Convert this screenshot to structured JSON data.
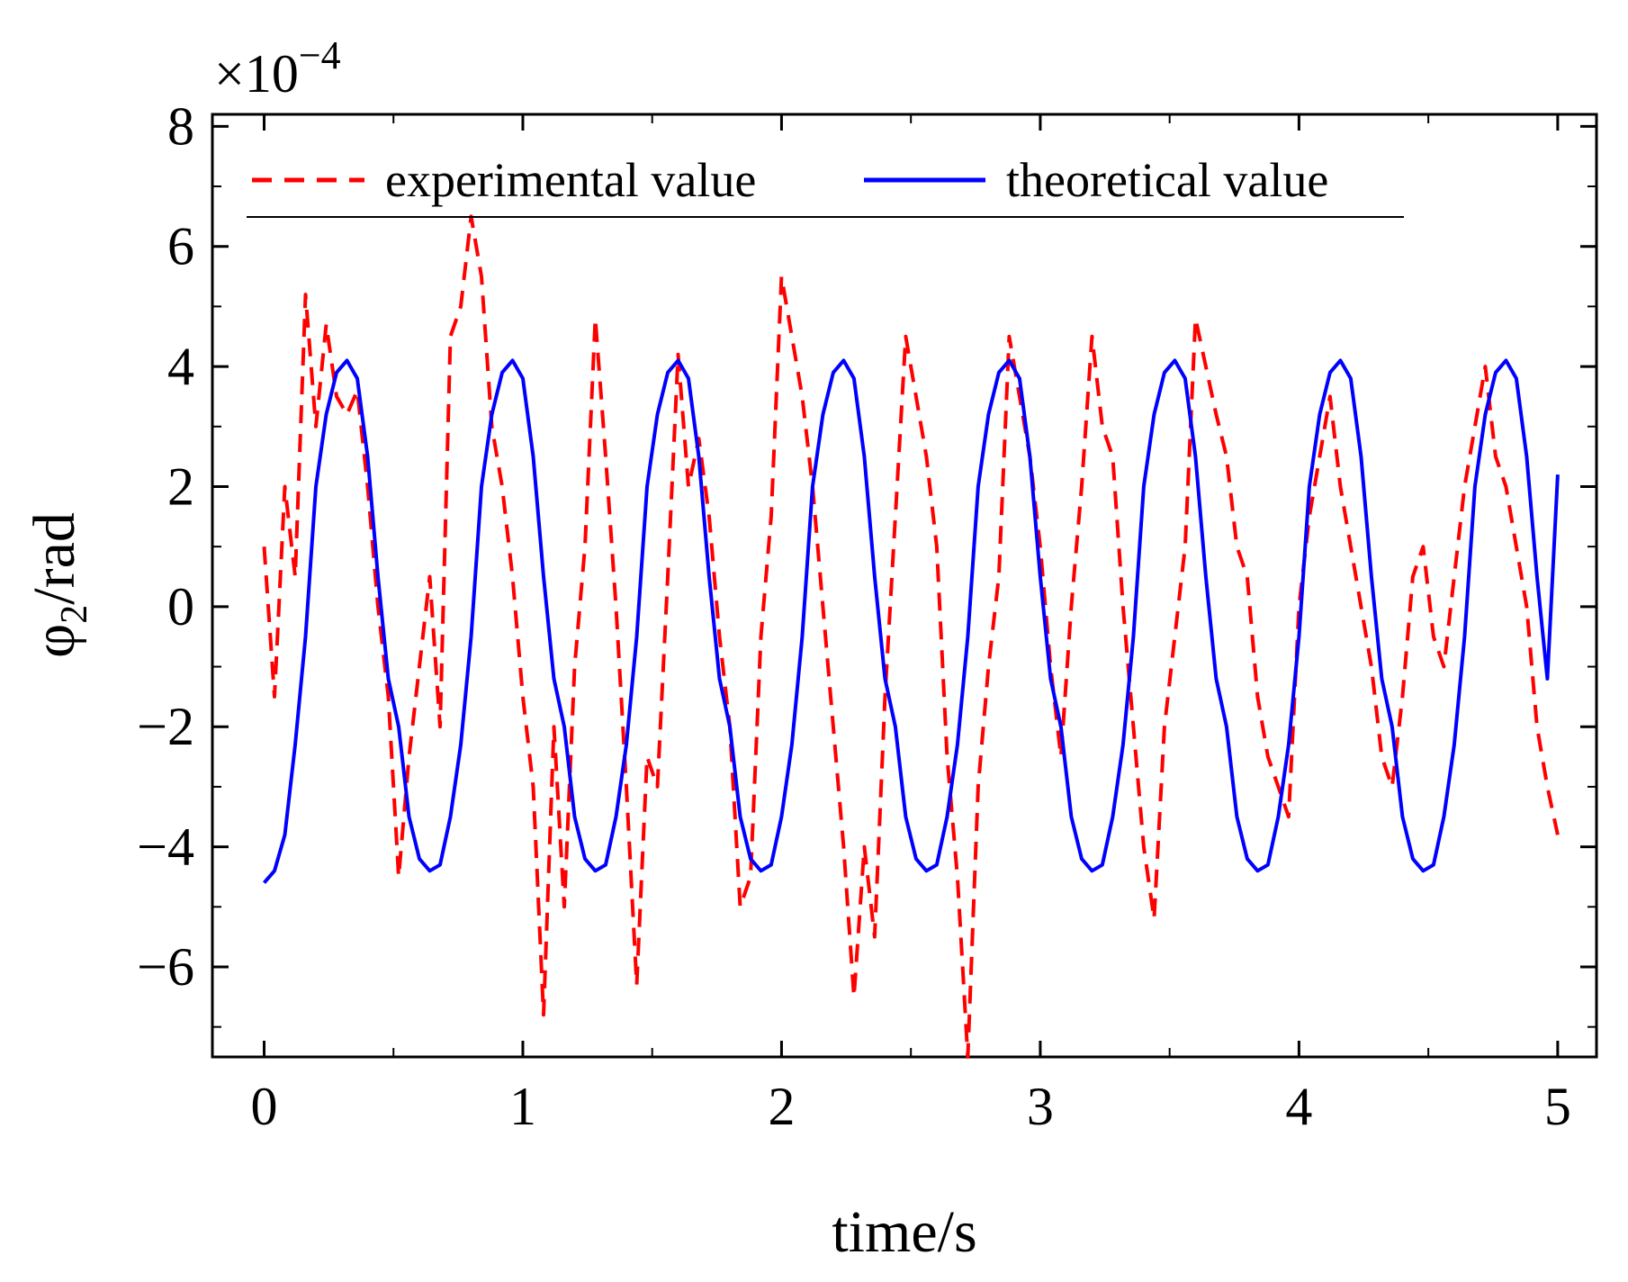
{
  "chart_data": {
    "type": "line",
    "title": "",
    "xlabel": "time/s",
    "ylabel": "φ2/rad",
    "ylabel_main": "φ",
    "ylabel_sub": "2",
    "ylabel_unit": "/rad",
    "y_multiplier": {
      "base": "×10",
      "exponent": "−4"
    },
    "xlim": [
      -0.2,
      5.15
    ],
    "ylim": [
      -7.5,
      8.2
    ],
    "x_ticks": [
      0,
      1,
      2,
      3,
      4,
      5
    ],
    "x_tick_labels": [
      "0",
      "1",
      "2",
      "3",
      "4",
      "5"
    ],
    "y_ticks": [
      -6,
      -4,
      -2,
      0,
      2,
      4,
      6,
      8
    ],
    "y_tick_labels": [
      "−6",
      "−4",
      "−2",
      "0",
      "2",
      "4",
      "6",
      "8"
    ],
    "grid": false,
    "legend_position": "top",
    "series": [
      {
        "name": "experimental value",
        "color": "#ff0000",
        "style": "dashed",
        "x": [
          0,
          0.04,
          0.08,
          0.12,
          0.16,
          0.2,
          0.24,
          0.28,
          0.32,
          0.36,
          0.4,
          0.44,
          0.48,
          0.52,
          0.56,
          0.6,
          0.64,
          0.68,
          0.72,
          0.76,
          0.8,
          0.84,
          0.88,
          0.92,
          0.96,
          1.0,
          1.04,
          1.08,
          1.12,
          1.16,
          1.2,
          1.24,
          1.28,
          1.32,
          1.36,
          1.4,
          1.44,
          1.48,
          1.52,
          1.56,
          1.6,
          1.64,
          1.68,
          1.72,
          1.76,
          1.8,
          1.84,
          1.88,
          1.92,
          1.96,
          2.0,
          2.04,
          2.08,
          2.12,
          2.16,
          2.2,
          2.24,
          2.28,
          2.32,
          2.36,
          2.4,
          2.44,
          2.48,
          2.52,
          2.56,
          2.6,
          2.64,
          2.68,
          2.72,
          2.76,
          2.8,
          2.84,
          2.88,
          2.92,
          2.96,
          3.0,
          3.04,
          3.08,
          3.12,
          3.16,
          3.2,
          3.24,
          3.28,
          3.32,
          3.36,
          3.4,
          3.44,
          3.48,
          3.52,
          3.56,
          3.6,
          3.64,
          3.68,
          3.72,
          3.76,
          3.8,
          3.84,
          3.88,
          3.92,
          3.96,
          4.0,
          4.04,
          4.08,
          4.12,
          4.16,
          4.2,
          4.24,
          4.28,
          4.32,
          4.36,
          4.4,
          4.44,
          4.48,
          4.52,
          4.56,
          4.6,
          4.64,
          4.68,
          4.72,
          4.76,
          4.8,
          4.84,
          4.88,
          4.92,
          4.96,
          5.0
        ],
        "y": [
          1.0,
          -1.5,
          2.0,
          0.5,
          5.2,
          3.0,
          4.7,
          3.5,
          3.2,
          3.6,
          2.0,
          0.0,
          -1.5,
          -4.5,
          -2.5,
          -1.0,
          0.5,
          -2.0,
          4.5,
          5.0,
          6.5,
          5.5,
          3.0,
          2.0,
          0.5,
          -1.5,
          -3.0,
          -6.8,
          -2.0,
          -5.0,
          -1.0,
          1.0,
          4.8,
          2.5,
          0.0,
          -3.0,
          -6.3,
          -2.5,
          -3.0,
          0.5,
          4.2,
          2.0,
          2.8,
          1.5,
          -0.5,
          -2.0,
          -5.0,
          -4.5,
          -0.5,
          1.5,
          5.5,
          4.5,
          3.5,
          2.0,
          0.0,
          -2.0,
          -4.0,
          -6.5,
          -4.0,
          -5.5,
          -1.5,
          1.5,
          4.5,
          3.5,
          2.5,
          1.0,
          -2.5,
          -4.5,
          -7.5,
          -3.0,
          -1.0,
          0.5,
          4.5,
          3.5,
          2.5,
          1.0,
          -1.0,
          -2.5,
          0.0,
          2.0,
          4.5,
          3.0,
          2.5,
          0.0,
          -2.0,
          -4.0,
          -5.2,
          -2.0,
          -0.5,
          1.0,
          4.8,
          4.0,
          3.2,
          2.5,
          1.0,
          0.5,
          -1.5,
          -2.5,
          -3.0,
          -3.5,
          0.0,
          1.5,
          2.5,
          3.5,
          2.0,
          1.0,
          0.0,
          -1.0,
          -2.5,
          -3.0,
          -1.5,
          0.5,
          1.0,
          -0.5,
          -1.0,
          0.5,
          2.0,
          3.0,
          4.0,
          2.5,
          2.0,
          1.0,
          0.0,
          -2.0,
          -3.0,
          -3.8
        ]
      },
      {
        "name": "theoretical value",
        "color": "#0000ff",
        "style": "solid",
        "x": [
          0,
          0.04,
          0.08,
          0.12,
          0.16,
          0.2,
          0.24,
          0.28,
          0.32,
          0.36,
          0.4,
          0.44,
          0.48,
          0.52,
          0.56,
          0.6,
          0.64,
          0.68,
          0.72,
          0.76,
          0.8,
          0.84,
          0.88,
          0.92,
          0.96,
          1.0,
          1.04,
          1.08,
          1.12,
          1.16,
          1.2,
          1.24,
          1.28,
          1.32,
          1.36,
          1.4,
          1.44,
          1.48,
          1.52,
          1.56,
          1.6,
          1.64,
          1.68,
          1.72,
          1.76,
          1.8,
          1.84,
          1.88,
          1.92,
          1.96,
          2.0,
          2.04,
          2.08,
          2.12,
          2.16,
          2.2,
          2.24,
          2.28,
          2.32,
          2.36,
          2.4,
          2.44,
          2.48,
          2.52,
          2.56,
          2.6,
          2.64,
          2.68,
          2.72,
          2.76,
          2.8,
          2.84,
          2.88,
          2.92,
          2.96,
          3.0,
          3.04,
          3.08,
          3.12,
          3.16,
          3.2,
          3.24,
          3.28,
          3.32,
          3.36,
          3.4,
          3.44,
          3.48,
          3.52,
          3.56,
          3.6,
          3.64,
          3.68,
          3.72,
          3.76,
          3.8,
          3.84,
          3.88,
          3.92,
          3.96,
          4.0,
          4.04,
          4.08,
          4.12,
          4.16,
          4.2,
          4.24,
          4.28,
          4.32,
          4.36,
          4.4,
          4.44,
          4.48,
          4.52,
          4.56,
          4.6,
          4.64,
          4.68,
          4.72,
          4.76,
          4.8,
          4.84,
          4.88,
          4.92,
          4.96,
          5.0
        ],
        "y": [
          -4.6,
          -4.4,
          -3.8,
          -2.3,
          -0.5,
          2.0,
          3.2,
          3.9,
          4.1,
          3.8,
          2.5,
          0.5,
          -1.2,
          -2.0,
          -3.5,
          -4.2,
          -4.4,
          -4.3,
          -3.5,
          -2.3,
          -0.5,
          2.0,
          3.2,
          3.9,
          4.1,
          3.8,
          2.5,
          0.5,
          -1.2,
          -2.0,
          -3.5,
          -4.2,
          -4.4,
          -4.3,
          -3.5,
          -2.3,
          -0.5,
          2.0,
          3.2,
          3.9,
          4.1,
          3.8,
          2.5,
          0.5,
          -1.2,
          -2.0,
          -3.5,
          -4.2,
          -4.4,
          -4.3,
          -3.5,
          -2.3,
          -0.5,
          2.0,
          3.2,
          3.9,
          4.1,
          3.8,
          2.5,
          0.5,
          -1.2,
          -2.0,
          -3.5,
          -4.2,
          -4.4,
          -4.3,
          -3.5,
          -2.3,
          -0.5,
          2.0,
          3.2,
          3.9,
          4.1,
          3.8,
          2.5,
          0.5,
          -1.2,
          -2.0,
          -3.5,
          -4.2,
          -4.4,
          -4.3,
          -3.5,
          -2.3,
          -0.5,
          2.0,
          3.2,
          3.9,
          4.1,
          3.8,
          2.5,
          0.5,
          -1.2,
          -2.0,
          -3.5,
          -4.2,
          -4.4,
          -4.3,
          -3.5,
          -2.3,
          -0.5,
          2.0,
          3.2,
          3.9,
          4.1,
          3.8,
          2.5,
          0.5,
          -1.2,
          -2.0,
          -3.5,
          -4.2,
          -4.4,
          -4.3,
          -3.5,
          -2.3,
          -0.5,
          2.0,
          3.2,
          3.9,
          4.1,
          3.8,
          2.5,
          0.5,
          -1.2,
          2.2
        ]
      }
    ]
  }
}
